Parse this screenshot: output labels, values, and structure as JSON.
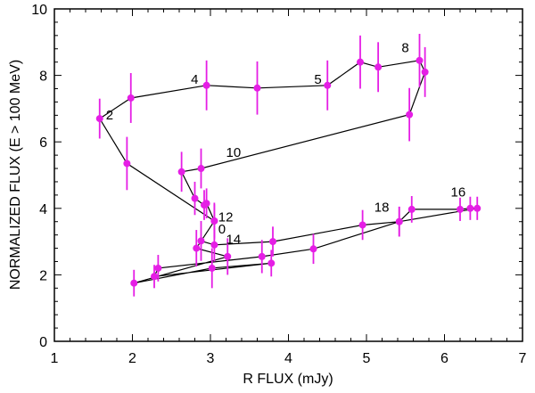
{
  "chart_data": {
    "type": "scatter",
    "xlabel": "R FLUX (mJy)",
    "ylabel": "NORMALIZED  FLUX (E > 100 MeV)",
    "xlim": [
      1,
      7
    ],
    "ylim": [
      0,
      10
    ],
    "x_ticks": [
      1,
      2,
      3,
      4,
      5,
      6,
      7
    ],
    "y_ticks": [
      0,
      2,
      4,
      6,
      8,
      10
    ],
    "x_tick_labels": [
      "1",
      "2",
      "3",
      "4",
      "5",
      "6",
      "7"
    ],
    "y_tick_labels": [
      "0",
      "2",
      "4",
      "6",
      "8",
      "10"
    ],
    "marker_color": "#e51ee5",
    "line_color": "#000000",
    "points": [
      {
        "x": 2.88,
        "y": 3.02,
        "yerr": 0.6
      },
      {
        "x": 3.05,
        "y": 2.9,
        "yerr": 0.5
      },
      {
        "x": 3.8,
        "y": 3.0,
        "yerr": 0.45
      },
      {
        "x": 4.95,
        "y": 3.5,
        "yerr": 0.45
      },
      {
        "x": 5.42,
        "y": 3.6,
        "yerr": 0.45
      },
      {
        "x": 5.58,
        "y": 3.97,
        "yerr": 0.4
      },
      {
        "x": 6.2,
        "y": 3.97,
        "yerr": 0.35
      },
      {
        "x": 6.33,
        "y": 4.0,
        "yerr": 0.35
      },
      {
        "x": 6.42,
        "y": 4.0,
        "yerr": 0.35
      },
      {
        "x": 5.42,
        "y": 3.6,
        "yerr": 0.45
      },
      {
        "x": 4.32,
        "y": 2.78,
        "yerr": 0.45
      },
      {
        "x": 3.66,
        "y": 2.55,
        "yerr": 0.5
      },
      {
        "x": 2.33,
        "y": 2.2,
        "yerr": 0.4
      },
      {
        "x": 2.28,
        "y": 1.95,
        "yerr": 0.35
      },
      {
        "x": 3.78,
        "y": 2.35,
        "yerr": 0.4
      },
      {
        "x": 3.02,
        "y": 2.2,
        "yerr": 0.6
      },
      {
        "x": 2.02,
        "y": 1.75,
        "yerr": 0.4
      },
      {
        "x": 3.22,
        "y": 2.55,
        "yerr": 0.55
      },
      {
        "x": 2.82,
        "y": 2.8,
        "yerr": 0.55
      },
      {
        "x": 3.05,
        "y": 3.62,
        "yerr": 0.55
      },
      {
        "x": 2.95,
        "y": 4.15,
        "yerr": 0.45
      },
      {
        "x": 2.92,
        "y": 4.1,
        "yerr": 0.45
      },
      {
        "x": 2.8,
        "y": 4.3,
        "yerr": 0.5
      },
      {
        "x": 2.63,
        "y": 5.1,
        "yerr": 0.6
      },
      {
        "x": 2.88,
        "y": 5.2,
        "yerr": 0.6
      },
      {
        "x": 5.55,
        "y": 6.82,
        "yerr": 0.8
      },
      {
        "x": 5.75,
        "y": 8.1,
        "yerr": 0.75
      },
      {
        "x": 5.68,
        "y": 8.45,
        "yerr": 0.8
      },
      {
        "x": 5.15,
        "y": 8.25,
        "yerr": 0.75
      },
      {
        "x": 4.92,
        "y": 8.4,
        "yerr": 0.8
      },
      {
        "x": 4.5,
        "y": 7.7,
        "yerr": 0.75
      },
      {
        "x": 3.6,
        "y": 7.62,
        "yerr": 0.8
      },
      {
        "x": 2.95,
        "y": 7.7,
        "yerr": 0.75
      },
      {
        "x": 1.98,
        "y": 7.32,
        "yerr": 0.75
      },
      {
        "x": 1.58,
        "y": 6.7,
        "yerr": 0.6
      },
      {
        "x": 1.93,
        "y": 5.35,
        "yerr": 0.8
      },
      {
        "x": 3.05,
        "y": 3.62,
        "yerr": 0.5
      }
    ],
    "annotations": [
      {
        "text": "0",
        "x": 3.1,
        "y": 3.25
      },
      {
        "text": "2",
        "x": 1.66,
        "y": 6.68
      },
      {
        "text": "4",
        "x": 2.75,
        "y": 7.75
      },
      {
        "text": "5",
        "x": 4.33,
        "y": 7.75
      },
      {
        "text": "8",
        "x": 5.45,
        "y": 8.7
      },
      {
        "text": "10",
        "x": 3.2,
        "y": 5.55
      },
      {
        "text": "12",
        "x": 3.1,
        "y": 3.6
      },
      {
        "text": "14",
        "x": 3.2,
        "y": 2.93
      },
      {
        "text": "16",
        "x": 6.08,
        "y": 4.35
      },
      {
        "text": "18",
        "x": 5.1,
        "y": 3.9
      }
    ]
  }
}
